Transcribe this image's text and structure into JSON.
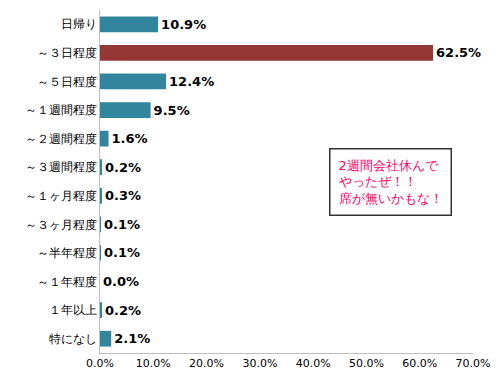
{
  "chart_data": {
    "type": "bar",
    "orientation": "horizontal",
    "categories": [
      "日帰り",
      "～３日程度",
      "～５日程度",
      "～１週間程度",
      "～２週間程度",
      "～３週間程度",
      "～１ヶ月程度",
      "～３ヶ月程度",
      "～半年程度",
      "～１年程度",
      "１年以上",
      "特になし"
    ],
    "values": [
      10.9,
      62.5,
      12.4,
      9.5,
      1.6,
      0.2,
      0.3,
      0.1,
      0.1,
      0.0,
      0.2,
      2.1
    ],
    "value_labels": [
      "10.9%",
      "62.5%",
      "12.4%",
      "9.5%",
      "1.6%",
      "0.2%",
      "0.3%",
      "0.1%",
      "0.1%",
      "0.0%",
      "0.2%",
      "2.1%"
    ],
    "colors": [
      "#31859c",
      "#953735",
      "#31859c",
      "#31859c",
      "#31859c",
      "#31859c",
      "#31859c",
      "#31859c",
      "#31859c",
      "#31859c",
      "#31859c",
      "#31859c"
    ],
    "data_labels": true,
    "xlim": [
      0,
      70
    ],
    "xticks": [
      {
        "value": 0,
        "label": "0.0%"
      },
      {
        "value": 10,
        "label": "10.0%"
      },
      {
        "value": 20,
        "label": "20.0%"
      },
      {
        "value": 30,
        "label": "30.0%"
      },
      {
        "value": 40,
        "label": "40.0%"
      },
      {
        "value": 50,
        "label": "50.0%"
      },
      {
        "value": 60,
        "label": "60.0%"
      },
      {
        "value": 70,
        "label": "70.0%"
      }
    ],
    "grid": false,
    "annotations": [
      {
        "text": "2週間会社休んで\nやったぜ！！\n席が無いかもな！",
        "color": "#ff0066"
      }
    ]
  }
}
